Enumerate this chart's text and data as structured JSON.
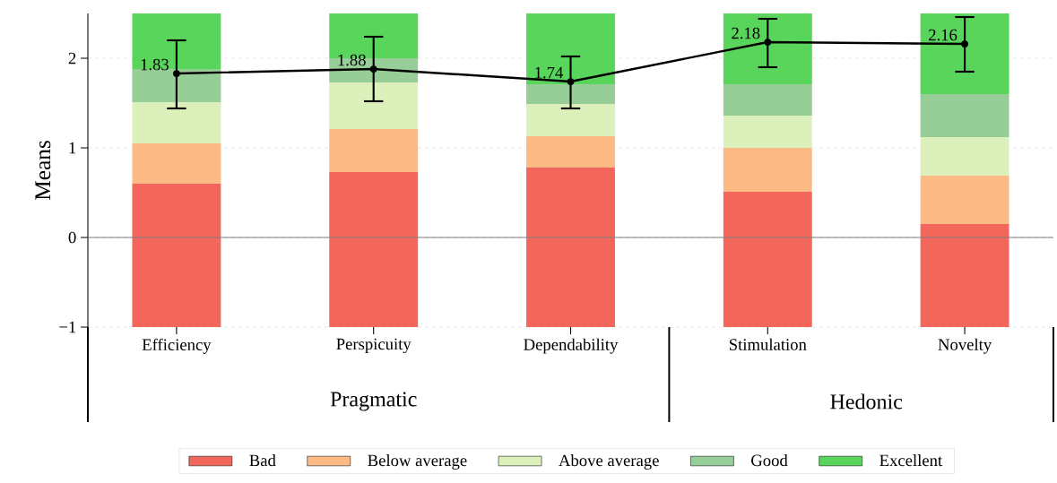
{
  "chart_data": {
    "type": "bar",
    "ylabel": "Means",
    "categories": [
      "Efficiency",
      "Perspicuity",
      "Dependability",
      "Stimulation",
      "Novelty"
    ],
    "series": [
      {
        "name": "Bad",
        "color": "#f3665c",
        "base": [
          -1,
          -1,
          -1,
          -1,
          -1
        ],
        "values": [
          1.6,
          1.73,
          1.78,
          1.51,
          1.15
        ]
      },
      {
        "name": "Below average",
        "color": "#fdba84",
        "base": [
          0.6,
          0.73,
          0.78,
          0.51,
          0.15
        ],
        "values": [
          0.45,
          0.48,
          0.35,
          0.49,
          0.54
        ]
      },
      {
        "name": "Above average",
        "color": "#dcf0bc",
        "base": [
          1.05,
          1.21,
          1.13,
          1.0,
          0.69
        ],
        "values": [
          0.46,
          0.52,
          0.36,
          0.36,
          0.43
        ]
      },
      {
        "name": "Good",
        "color": "#97cd96",
        "base": [
          1.51,
          1.73,
          1.49,
          1.36,
          1.12
        ],
        "values": [
          0.37,
          0.27,
          0.22,
          0.35,
          0.48
        ]
      },
      {
        "name": "Excellent",
        "color": "#5ad55c",
        "base": [
          1.88,
          2.0,
          1.71,
          1.71,
          1.6
        ],
        "values": [
          0.62,
          0.5,
          0.79,
          0.79,
          0.9
        ]
      },
      {
        "type": "line",
        "color": "#000000",
        "values": [
          1.83,
          1.88,
          1.74,
          2.18,
          2.16
        ],
        "errors": [
          [
            1.44,
            2.2
          ],
          [
            1.52,
            2.24
          ],
          [
            1.44,
            2.02
          ],
          [
            1.9,
            2.44
          ],
          [
            1.85,
            2.46
          ]
        ],
        "value_labels": [
          "1.83",
          "1.88",
          "1.74",
          "2.18",
          "2.16"
        ]
      }
    ],
    "marker": "circle",
    "line_style": "solid",
    "ylim": [
      -1,
      2.5
    ],
    "yticks": [
      {
        "value": -1,
        "label": "−1"
      },
      0,
      1,
      2
    ],
    "grid": "y",
    "legend": "bottom",
    "ref_lines": [
      {
        "axis": "y",
        "value": 0,
        "color": "#808080"
      }
    ],
    "annotations": [
      "Pragmatic",
      "Hedonic"
    ]
  }
}
